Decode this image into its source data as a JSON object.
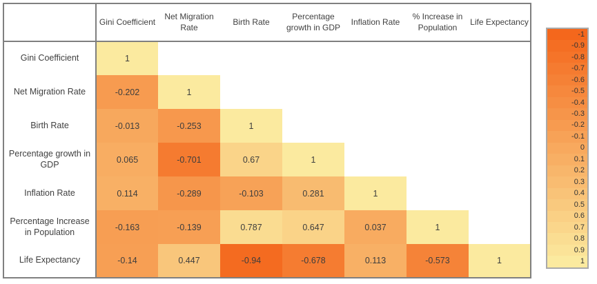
{
  "matrix": {
    "column_headers": [
      "Gini Coefficient",
      "Net Migration Rate",
      "Birth Rate",
      "Percentage growth in GDP",
      "Inflation Rate",
      "% Increase in Population",
      "Life Expectancy"
    ],
    "rows": [
      {
        "label": "Gini Coefficient",
        "values": [
          "1"
        ]
      },
      {
        "label": "Net Migration Rate",
        "values": [
          "-0.202",
          "1"
        ]
      },
      {
        "label": "Birth Rate",
        "values": [
          "-0.013",
          "-0.253",
          "1"
        ]
      },
      {
        "label": "Percentage growth in GDP",
        "values": [
          "0.065",
          "-0.701",
          "0.67",
          "1"
        ]
      },
      {
        "label": "Inflation Rate",
        "values": [
          "0.114",
          "-0.289",
          "-0.103",
          "0.281",
          "1"
        ]
      },
      {
        "label": "Percentage Increase in Population",
        "values": [
          "-0.163",
          "-0.139",
          "0.787",
          "0.647",
          "0.037",
          "1"
        ]
      },
      {
        "label": "Life Expectancy",
        "values": [
          "-0.14",
          "0.447",
          "-0.94",
          "-0.678",
          "0.113",
          "-0.573",
          "1"
        ]
      }
    ]
  },
  "legend": {
    "ticks": [
      "-1",
      "-0.9",
      "-0.8",
      "-0.7",
      "-0.6",
      "-0.5",
      "-0.4",
      "-0.3",
      "-0.2",
      "-0.1",
      "0",
      "0.1",
      "0.2",
      "0.3",
      "0.4",
      "0.5",
      "0.6",
      "0.7",
      "0.8",
      "0.9",
      "1"
    ]
  },
  "colors": {
    "scale_min_color": "#F4671C",
    "scale_max_color": "#FBEA9F",
    "table_border": "#7F7F7F",
    "legend_border": "#A9A9A9",
    "text": "#404040"
  },
  "chart_data": {
    "type": "heatmap",
    "title": "",
    "categories": [
      "Gini Coefficient",
      "Net Migration Rate",
      "Birth Rate",
      "Percentage growth in GDP",
      "Inflation Rate",
      "% Increase in Population",
      "Life Expectancy"
    ],
    "row_categories": [
      "Gini Coefficient",
      "Net Migration Rate",
      "Birth Rate",
      "Percentage growth in GDP",
      "Inflation Rate",
      "Percentage Increase in Population",
      "Life Expectancy"
    ],
    "matrix": [
      [
        1,
        null,
        null,
        null,
        null,
        null,
        null
      ],
      [
        -0.202,
        1,
        null,
        null,
        null,
        null,
        null
      ],
      [
        -0.013,
        -0.253,
        1,
        null,
        null,
        null,
        null
      ],
      [
        0.065,
        -0.701,
        0.67,
        1,
        null,
        null,
        null
      ],
      [
        0.114,
        -0.289,
        -0.103,
        0.281,
        1,
        null,
        null
      ],
      [
        -0.163,
        -0.139,
        0.787,
        0.647,
        0.037,
        1,
        null
      ],
      [
        -0.14,
        0.447,
        -0.94,
        -0.678,
        0.113,
        -0.573,
        1
      ]
    ],
    "colorbar": {
      "min": -1,
      "max": 1,
      "tick_step": 0.1,
      "min_color": "#F4671C",
      "max_color": "#FBEA9F"
    },
    "legend_position": "right",
    "grid": false
  }
}
